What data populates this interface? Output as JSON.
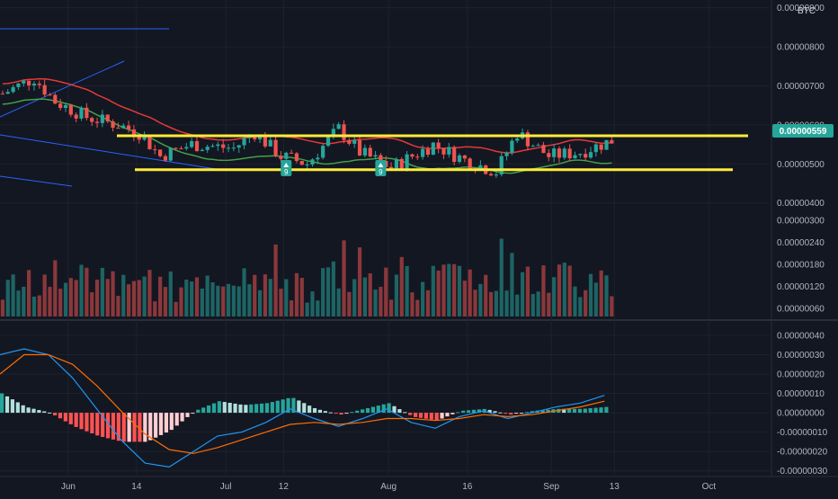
{
  "header": {
    "currency": "BTC"
  },
  "price_badge": {
    "value": "0.00000559",
    "color": "#26a69a"
  },
  "colors": {
    "background": "#131722",
    "grid": "#1e222d",
    "text": "#b2b5be",
    "up": "#26a69a",
    "down": "#ef5350",
    "up_volume": "#26a69a",
    "down_volume": "#ef5350",
    "ma_fast": "#e53935",
    "ma_slow": "#43a047",
    "level_lines": "#ffeb3b",
    "trend_lines": "#2962ff",
    "macd_line": "#2196f3",
    "signal_line": "#ff6d00",
    "hist_up_strong": "#26a69a",
    "hist_up_weak": "#b2dfdb",
    "hist_down_strong": "#ff5252",
    "hist_down_weak": "#ffcdd2"
  },
  "chart_data": [
    {
      "type": "candlestick",
      "pane": "price",
      "quote_currency": "BTC",
      "last_price": 5.59e-06,
      "y_ticks": [
        "0.00000900",
        "0.00000800",
        "0.00000700",
        "0.00000600",
        "0.00000500",
        "0.00000400"
      ],
      "ylim": [
        3.6e-06,
        9.2e-06
      ],
      "horizontal_levels": [
        5.72e-06,
        4.85e-06
      ],
      "signal_markers": [
        {
          "date": "2021-07-12",
          "label": "9"
        },
        {
          "date": "2021-07-30",
          "label": "9"
        }
      ],
      "moving_averages": [
        "ma_fast",
        "ma_slow"
      ],
      "trend_channel": true
    },
    {
      "type": "bar",
      "pane": "volume",
      "y_ticks": [
        "0.00000300",
        "0.00000240",
        "0.00000180",
        "0.00000120",
        "0.00000060"
      ],
      "ylim": [
        0,
        3.3e-06
      ]
    },
    {
      "type": "macd",
      "pane": "oscillator",
      "y_ticks": [
        "0.00000040",
        "0.00000030",
        "0.00000020",
        "0.00000010",
        "0.00000000",
        "-0.00000010",
        "-0.00000020",
        "-0.00000030"
      ],
      "ylim": [
        -3.2e-07,
        4.6e-07
      ],
      "series": [
        {
          "name": "",
          "role": "macd",
          "values": [
            3e-07,
            3.3e-07,
            3e-07,
            1.8e-07,
            2e-08,
            -1.4e-07,
            -2.6e-07,
            -2.8e-07,
            -2e-07,
            -1.2e-07,
            -1e-07,
            -5e-08,
            2e-08,
            -3e-08,
            -7e-08,
            -3e-08,
            2e-08,
            -5e-08,
            -8e-08,
            -2e-08,
            1e-08,
            -3e-08,
            0.0,
            3e-08,
            5e-08,
            9e-08
          ]
        },
        {
          "name": "",
          "role": "signal",
          "values": [
            2e-07,
            3e-07,
            3e-07,
            2.5e-07,
            1.4e-07,
            1e-08,
            -1.1e-07,
            -1.9e-07,
            -2.1e-07,
            -1.8e-07,
            -1.4e-07,
            -1e-07,
            -6e-08,
            -5e-08,
            -6e-08,
            -5e-08,
            -3e-08,
            -3e-08,
            -4e-08,
            -3e-08,
            -1e-08,
            -2e-08,
            -1e-08,
            1e-08,
            3e-08,
            6e-08
          ]
        }
      ]
    }
  ],
  "x_axis": {
    "labels": [
      "Jun",
      "14",
      "Jul",
      "12",
      "Aug",
      "16",
      "Sep",
      "13",
      "Oct"
    ]
  }
}
